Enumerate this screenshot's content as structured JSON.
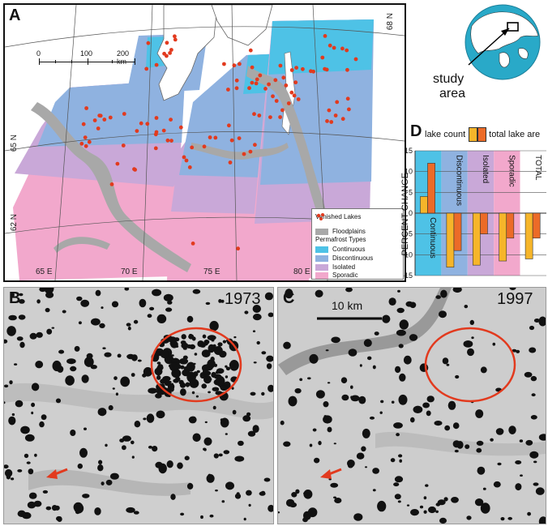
{
  "panel_a": {
    "letter": "A",
    "lat_labels": [
      "68 N",
      "65 N",
      "62 N"
    ],
    "lon_labels": [
      "65 E",
      "70 E",
      "75 E",
      "80 E"
    ],
    "scale": {
      "tick_labels": [
        "0",
        "100",
        "200 km"
      ]
    },
    "legend": {
      "vanished": "Vanished Lakes",
      "floodplains": "Floodplains",
      "permafrost_title": "Permafrost Types",
      "items": [
        {
          "label": "Continuous",
          "color": "#4ec2e6"
        },
        {
          "label": "Discontinuous",
          "color": "#8fb2e0"
        },
        {
          "label": "Isolated",
          "color": "#c9a8d8"
        },
        {
          "label": "Sporadic",
          "color": "#f2a8cc"
        }
      ],
      "floodplain_color": "#a8a8a8",
      "lake_color": "#e23a1e"
    }
  },
  "globe": {
    "label_line1": "study",
    "label_line2": "area",
    "ocean_color": "#29a9c8"
  },
  "panel_b": {
    "letter": "B",
    "year": "1973"
  },
  "panel_c": {
    "letter": "C",
    "year": "1997",
    "scale_label": "10 km"
  },
  "chart_data": {
    "type": "bar",
    "panel_letter": "D",
    "ylabel": "PERCENT CHANGE",
    "ylim": [
      -15,
      15
    ],
    "yticks": [
      15,
      10,
      5,
      0,
      -5,
      -10,
      -15
    ],
    "categories": [
      "Continuous",
      "Discontinuous",
      "Isolated",
      "Sporadic",
      "TOTAL"
    ],
    "category_colors": [
      "#4ec2e6",
      "#8fb2e0",
      "#c9a8d8",
      "#f2a8cc",
      "#ffffff"
    ],
    "series": [
      {
        "name": "lake count",
        "color": "#f6b52a",
        "values": [
          4,
          -13,
          -12.5,
          -11.5,
          -11
        ]
      },
      {
        "name": "total lake are",
        "color": "#ec6b28",
        "values": [
          12,
          -9,
          -5,
          -6,
          -6
        ]
      }
    ]
  }
}
